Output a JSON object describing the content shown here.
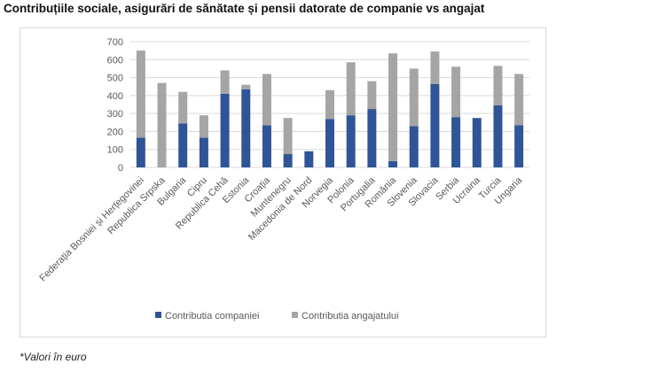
{
  "page": {
    "title": "Contribuțiile sociale, asigurări de sănătate și pensii datorate de companie vs angajat",
    "footnote": "*Valori în euro"
  },
  "colors": {
    "company": "#2f5597",
    "employee": "#a5a5a5",
    "grid": "#d9d9d9",
    "text": "#595959"
  },
  "chart_data": {
    "type": "bar",
    "stacked": true,
    "title": "Contribuțiile sociale, asigurări de sănătate și pensii datorate de companie vs angajat",
    "xlabel": "",
    "ylabel": "",
    "ylim": [
      0,
      700
    ],
    "yticks": [
      0,
      100,
      200,
      300,
      400,
      500,
      600,
      700
    ],
    "grid": true,
    "legend_position": "bottom",
    "categories": [
      "Federația Bosniei și Herțegovinei",
      "Republica Srpska",
      "Bulgaria",
      "Cipru",
      "Republica Cehă",
      "Estonia",
      "Croația",
      "Muntenegru",
      "Macedonia de Nord",
      "Norvegia",
      "Polonia",
      "Portugalia",
      "România",
      "Slovenia",
      "Slovacia",
      "Serbia",
      "Ucraina",
      "Turcia",
      "Ungaria"
    ],
    "series": [
      {
        "name": "Contributia companiei",
        "values": [
          165,
          0,
          245,
          165,
          410,
          435,
          235,
          75,
          90,
          270,
          290,
          325,
          35,
          230,
          465,
          280,
          275,
          345,
          235
        ]
      },
      {
        "name": "Contributia angajatului",
        "values": [
          485,
          470,
          175,
          125,
          130,
          25,
          285,
          200,
          0,
          160,
          295,
          155,
          600,
          320,
          180,
          280,
          0,
          220,
          285
        ]
      }
    ]
  }
}
